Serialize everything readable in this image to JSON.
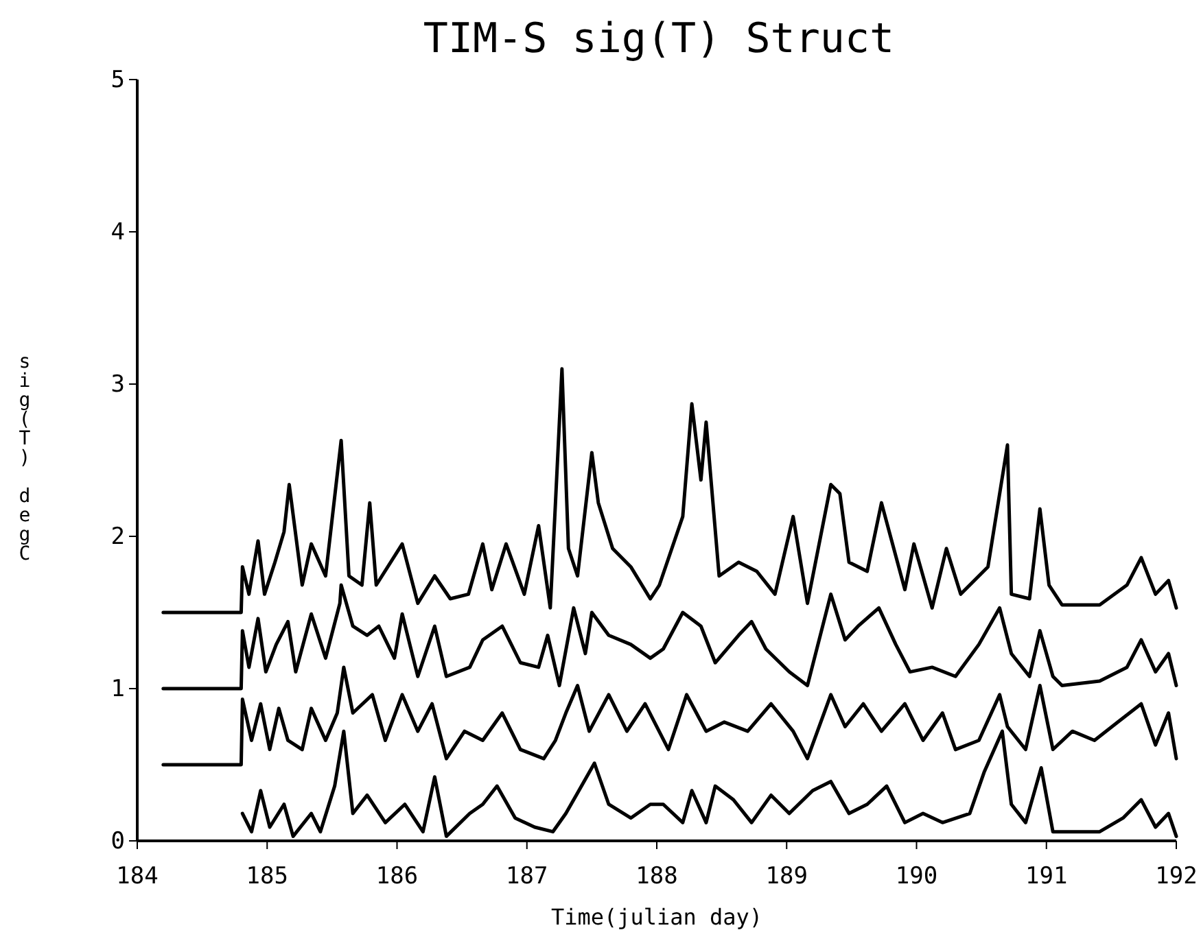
{
  "chart_data": {
    "type": "line",
    "title": "TIM-S sig(T) Struct",
    "xlabel": "Time(julian day)",
    "ylabel": "sig(T) degC",
    "xlim": [
      184,
      192
    ],
    "xticks": [
      184,
      185,
      186,
      187,
      188,
      189,
      190,
      191,
      192
    ],
    "ylim": [
      0,
      5
    ],
    "yticks": [
      0,
      1,
      2,
      3,
      4,
      5
    ],
    "grid": false,
    "marker": "none",
    "line_style": "solid",
    "series": [
      {
        "color": "#000000",
        "x": [
          184.2,
          184.8,
          184.81,
          184.86,
          184.93,
          184.98,
          185.06,
          185.13,
          185.17,
          185.27,
          185.34,
          185.45,
          185.57,
          185.63,
          185.73,
          185.79,
          185.84,
          186.04,
          186.16,
          186.29,
          186.41,
          186.55,
          186.66,
          186.73,
          186.84,
          186.98,
          187.09,
          187.18,
          187.22,
          187.27,
          187.32,
          187.39,
          187.5,
          187.55,
          187.66,
          187.8,
          187.95,
          188.02,
          188.2,
          188.27,
          188.34,
          188.38,
          188.48,
          188.63,
          188.77,
          188.91,
          189.05,
          189.16,
          189.34,
          189.41,
          189.48,
          189.62,
          189.73,
          189.91,
          189.98,
          190.12,
          190.23,
          190.34,
          190.55,
          190.7,
          190.73,
          190.87,
          190.95,
          191.02,
          191.12,
          191.41,
          191.62,
          191.73,
          191.84,
          191.94,
          192.0
        ],
        "values": [
          1.5,
          1.5,
          1.8,
          1.62,
          1.97,
          1.62,
          1.83,
          2.03,
          2.34,
          1.68,
          1.95,
          1.74,
          2.63,
          1.74,
          1.68,
          2.22,
          1.68,
          1.95,
          1.56,
          1.74,
          1.59,
          1.62,
          1.95,
          1.65,
          1.95,
          1.62,
          2.07,
          1.53,
          2.22,
          3.1,
          1.92,
          1.74,
          2.55,
          2.22,
          1.92,
          1.8,
          1.59,
          1.68,
          2.13,
          2.87,
          2.37,
          2.75,
          1.74,
          1.83,
          1.77,
          1.62,
          2.13,
          1.56,
          2.34,
          2.28,
          1.83,
          1.77,
          2.22,
          1.65,
          1.95,
          1.53,
          1.92,
          1.62,
          1.8,
          2.6,
          1.62,
          1.59,
          2.18,
          1.68,
          1.55,
          1.55,
          1.68,
          1.86,
          1.62,
          1.71,
          1.53
        ]
      },
      {
        "color": "#000000",
        "x": [
          184.2,
          184.8,
          184.81,
          184.86,
          184.93,
          184.99,
          185.07,
          185.16,
          185.22,
          185.34,
          185.45,
          185.56,
          185.57,
          185.66,
          185.77,
          185.86,
          185.98,
          186.04,
          186.16,
          186.29,
          186.38,
          186.56,
          186.66,
          186.81,
          186.95,
          187.09,
          187.16,
          187.25,
          187.36,
          187.45,
          187.5,
          187.63,
          187.8,
          187.95,
          188.05,
          188.2,
          188.34,
          188.45,
          188.63,
          188.73,
          188.84,
          189.02,
          189.16,
          189.34,
          189.45,
          189.55,
          189.71,
          189.84,
          189.95,
          190.12,
          190.3,
          190.48,
          190.64,
          190.73,
          190.87,
          190.95,
          191.05,
          191.12,
          191.41,
          191.62,
          191.73,
          191.84,
          191.94,
          192.0
        ],
        "values": [
          1.0,
          1.0,
          1.38,
          1.14,
          1.46,
          1.11,
          1.29,
          1.44,
          1.11,
          1.49,
          1.2,
          1.56,
          1.68,
          1.41,
          1.35,
          1.41,
          1.2,
          1.49,
          1.08,
          1.41,
          1.08,
          1.14,
          1.32,
          1.41,
          1.17,
          1.14,
          1.35,
          1.02,
          1.53,
          1.23,
          1.5,
          1.35,
          1.29,
          1.2,
          1.26,
          1.5,
          1.41,
          1.17,
          1.35,
          1.44,
          1.26,
          1.11,
          1.02,
          1.62,
          1.32,
          1.41,
          1.53,
          1.29,
          1.11,
          1.14,
          1.08,
          1.29,
          1.53,
          1.23,
          1.08,
          1.38,
          1.08,
          1.02,
          1.05,
          1.14,
          1.32,
          1.11,
          1.23,
          1.02
        ]
      },
      {
        "color": "#000000",
        "x": [
          184.2,
          184.8,
          184.81,
          184.88,
          184.95,
          185.02,
          185.09,
          185.16,
          185.27,
          185.34,
          185.45,
          185.54,
          185.59,
          185.66,
          185.81,
          185.91,
          186.04,
          186.16,
          186.27,
          186.38,
          186.52,
          186.66,
          186.81,
          186.95,
          187.13,
          187.22,
          187.3,
          187.39,
          187.48,
          187.63,
          187.77,
          187.91,
          188.09,
          188.23,
          188.38,
          188.52,
          188.7,
          188.88,
          189.05,
          189.16,
          189.34,
          189.45,
          189.59,
          189.73,
          189.91,
          190.05,
          190.2,
          190.3,
          190.48,
          190.64,
          190.7,
          190.84,
          190.95,
          191.05,
          191.2,
          191.37,
          191.55,
          191.73,
          191.84,
          191.94,
          192.0
        ],
        "values": [
          0.5,
          0.5,
          0.93,
          0.66,
          0.9,
          0.6,
          0.87,
          0.66,
          0.6,
          0.87,
          0.66,
          0.84,
          1.14,
          0.84,
          0.96,
          0.66,
          0.96,
          0.72,
          0.9,
          0.54,
          0.72,
          0.66,
          0.84,
          0.6,
          0.54,
          0.66,
          0.84,
          1.02,
          0.72,
          0.96,
          0.72,
          0.9,
          0.6,
          0.96,
          0.72,
          0.78,
          0.72,
          0.9,
          0.72,
          0.54,
          0.96,
          0.75,
          0.9,
          0.72,
          0.9,
          0.66,
          0.84,
          0.6,
          0.66,
          0.96,
          0.75,
          0.6,
          1.02,
          0.6,
          0.72,
          0.66,
          0.78,
          0.9,
          0.63,
          0.84,
          0.54
        ]
      },
      {
        "color": "#000000",
        "x": [
          184.81,
          184.88,
          184.95,
          185.02,
          185.13,
          185.2,
          185.34,
          185.41,
          185.52,
          185.59,
          185.66,
          185.77,
          185.91,
          186.06,
          186.2,
          186.29,
          186.38,
          186.56,
          186.66,
          186.77,
          186.91,
          187.06,
          187.2,
          187.3,
          187.38,
          187.52,
          187.63,
          187.8,
          187.95,
          188.05,
          188.2,
          188.27,
          188.38,
          188.45,
          188.59,
          188.73,
          188.88,
          189.02,
          189.2,
          189.34,
          189.48,
          189.62,
          189.77,
          189.91,
          190.05,
          190.2,
          190.41,
          190.52,
          190.66,
          190.73,
          190.84,
          190.96,
          191.05,
          191.2,
          191.41,
          191.59,
          191.73,
          191.84,
          191.94,
          192.0
        ],
        "values": [
          0.18,
          0.06,
          0.33,
          0.09,
          0.24,
          0.03,
          0.18,
          0.06,
          0.36,
          0.72,
          0.18,
          0.3,
          0.12,
          0.24,
          0.06,
          0.42,
          0.03,
          0.18,
          0.24,
          0.36,
          0.15,
          0.09,
          0.06,
          0.18,
          0.3,
          0.51,
          0.24,
          0.15,
          0.24,
          0.24,
          0.12,
          0.33,
          0.12,
          0.36,
          0.27,
          0.12,
          0.3,
          0.18,
          0.33,
          0.39,
          0.18,
          0.24,
          0.36,
          0.12,
          0.18,
          0.12,
          0.18,
          0.45,
          0.72,
          0.24,
          0.12,
          0.48,
          0.06,
          0.06,
          0.06,
          0.15,
          0.27,
          0.09,
          0.18,
          0.03
        ]
      }
    ]
  }
}
